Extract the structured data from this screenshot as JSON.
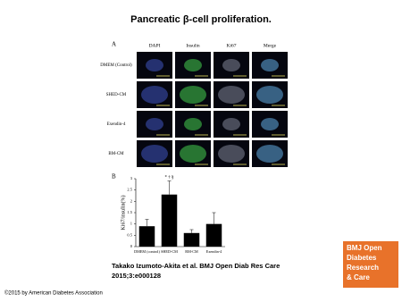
{
  "title": "Pancreatic β-cell proliferation.",
  "panel_a": {
    "label": "A",
    "columns": [
      "DAPI",
      "Insulin",
      "Ki67",
      "Merge"
    ],
    "rows": [
      "DMEM (Control)",
      "SHED-CM",
      "Exendin-4",
      "BM-CM"
    ]
  },
  "chart_data": {
    "type": "bar",
    "panel_label": "B",
    "ylabel": "Ki67/insulin(%)",
    "categories": [
      "DMEM (control)",
      "SHED-CM",
      "BM-CM",
      "Exendin-4"
    ],
    "values": [
      0.9,
      2.3,
      0.6,
      1.0
    ],
    "errors": [
      0.3,
      0.6,
      0.15,
      0.5
    ],
    "annotation": "* † §",
    "color": "#000000",
    "ylim": [
      0,
      3
    ],
    "yticks": [
      0,
      0.5,
      1,
      1.5,
      2,
      2.5,
      3
    ]
  },
  "citation": [
    "Takako Izumoto-Akita et al. BMJ Open Diab Res Care",
    "2015;3:e000128"
  ],
  "logo": [
    "BMJ Open",
    "Diabetes",
    "Research",
    "& Care"
  ],
  "copyright": "©2015 by American Diabetes Association"
}
